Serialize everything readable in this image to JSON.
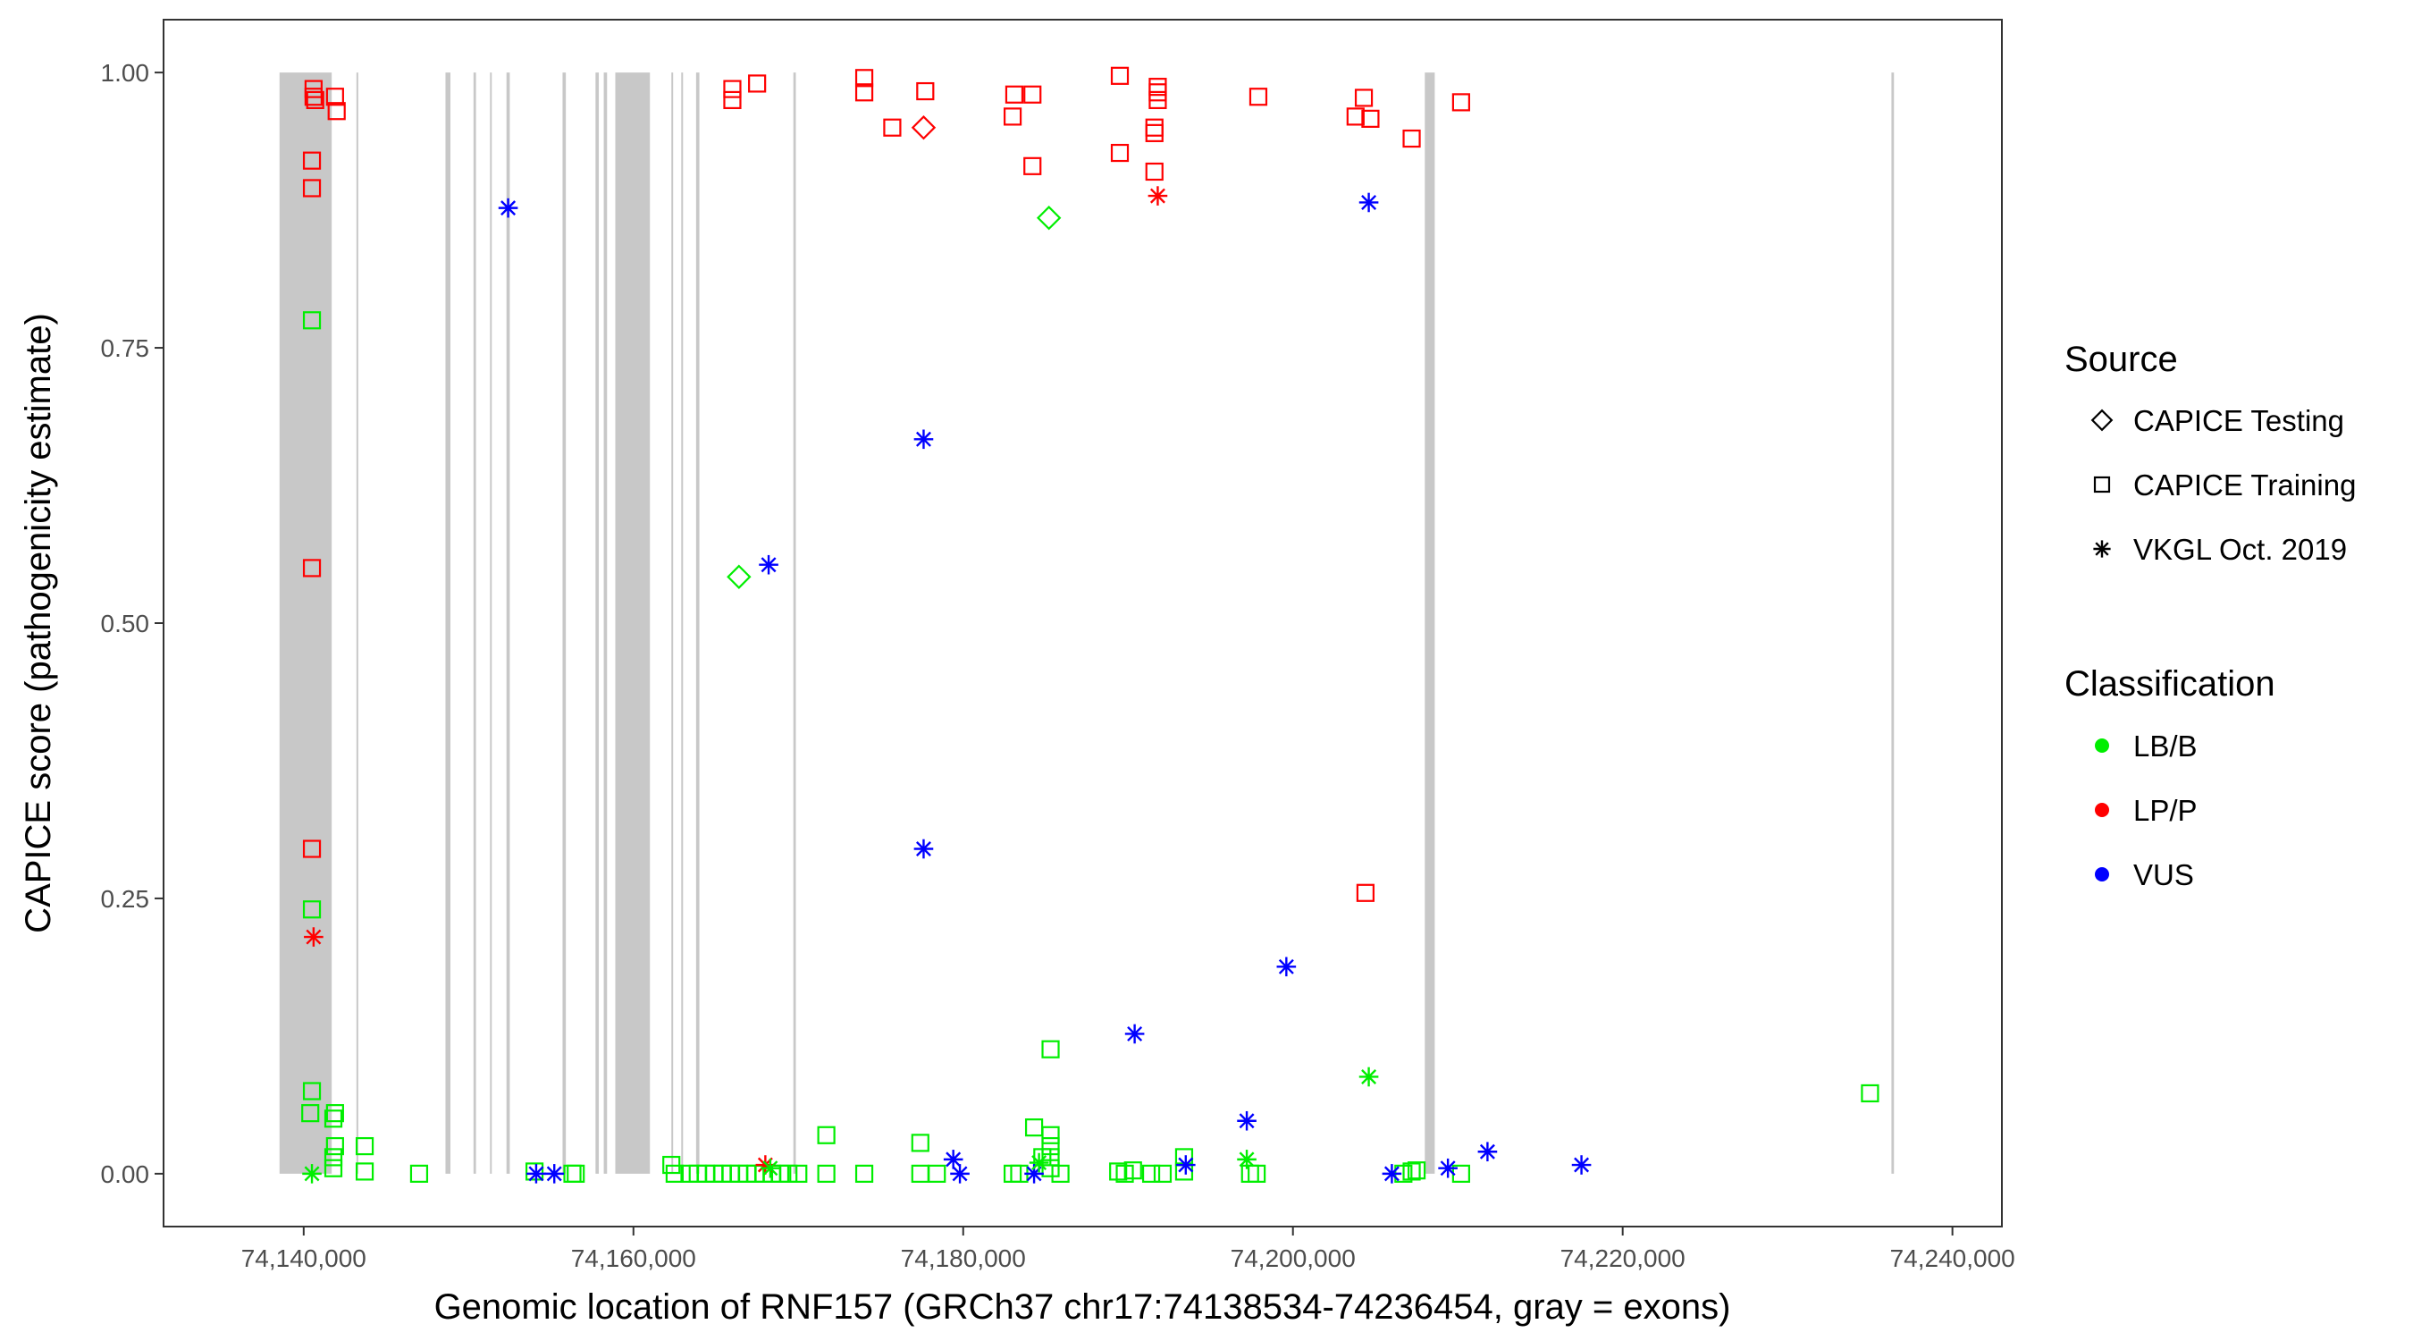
{
  "chart_data": {
    "type": "scatter",
    "xlabel": "Genomic location of RNF157 (GRCh37 chr17:74138534-74236454, gray = exons)",
    "ylabel": "CAPICE score (pathogenicity estimate)",
    "xlim": [
      74131500,
      74243000
    ],
    "ylim": [
      -0.048,
      1.048
    ],
    "xticks": [
      74140000,
      74160000,
      74180000,
      74200000,
      74220000,
      74240000
    ],
    "xtick_labels": [
      "74,140,000",
      "74,160,000",
      "74,180,000",
      "74,200,000",
      "74,220,000",
      "74,240,000"
    ],
    "yticks": [
      0,
      0.25,
      0.5,
      0.75,
      1
    ],
    "ytick_labels": [
      "0.00",
      "0.25",
      "0.50",
      "0.75",
      "1.00"
    ],
    "grid": false,
    "legend_position": "right",
    "exon_color": "#c8c8c8",
    "exons": [
      [
        74138534,
        74141700
      ],
      [
        74143200,
        74143300
      ],
      [
        74148600,
        74148900
      ],
      [
        74150300,
        74150450
      ],
      [
        74151300,
        74151400
      ],
      [
        74152300,
        74152500
      ],
      [
        74155700,
        74155900
      ],
      [
        74157700,
        74157900
      ],
      [
        74158200,
        74158400
      ],
      [
        74158900,
        74161000
      ],
      [
        74162300,
        74162400
      ],
      [
        74162900,
        74163000
      ],
      [
        74163800,
        74164000
      ],
      [
        74169700,
        74169850
      ],
      [
        74208000,
        74208600
      ],
      [
        74236300,
        74236454
      ]
    ],
    "legend_shape": {
      "title": "Source",
      "entries": [
        {
          "name": "CAPICE Testing",
          "shape": "diamond"
        },
        {
          "name": "CAPICE Training",
          "shape": "square"
        },
        {
          "name": "VKGL Oct. 2019",
          "shape": "asterisk"
        }
      ]
    },
    "legend_color": {
      "title": "Classification",
      "entries": [
        {
          "name": "LB/B",
          "color": "#00ee00"
        },
        {
          "name": "LP/P",
          "color": "#ff0000"
        },
        {
          "name": "VUS",
          "color": "#0000ff"
        }
      ]
    },
    "series": [
      {
        "source": "CAPICE Training",
        "classification": "LP/P",
        "points": [
          [
            74140600,
            0.985
          ],
          [
            74140600,
            0.978
          ],
          [
            74140700,
            0.975
          ],
          [
            74141900,
            0.978
          ],
          [
            74142000,
            0.965
          ],
          [
            74140500,
            0.92
          ],
          [
            74140500,
            0.895
          ],
          [
            74140500,
            0.55
          ],
          [
            74140500,
            0.295
          ],
          [
            74166000,
            0.985
          ],
          [
            74166000,
            0.975
          ],
          [
            74167500,
            0.99
          ],
          [
            74174000,
            0.995
          ],
          [
            74174000,
            0.982
          ],
          [
            74175700,
            0.95
          ],
          [
            74177700,
            0.983
          ],
          [
            74183000,
            0.96
          ],
          [
            74183100,
            0.98
          ],
          [
            74184200,
            0.98
          ],
          [
            74184200,
            0.915
          ],
          [
            74189500,
            0.997
          ],
          [
            74189500,
            0.927
          ],
          [
            74191800,
            0.987
          ],
          [
            74191800,
            0.982
          ],
          [
            74191800,
            0.975
          ],
          [
            74191600,
            0.95
          ],
          [
            74191600,
            0.945
          ],
          [
            74191600,
            0.91
          ],
          [
            74197900,
            0.978
          ],
          [
            74203800,
            0.96
          ],
          [
            74204300,
            0.977
          ],
          [
            74204700,
            0.958
          ],
          [
            74207200,
            0.94
          ],
          [
            74210200,
            0.973
          ],
          [
            74204400,
            0.255
          ]
        ]
      },
      {
        "source": "CAPICE Training",
        "classification": "LB/B",
        "points": [
          [
            74140500,
            0.775
          ],
          [
            74140500,
            0.24
          ],
          [
            74140500,
            0.075
          ],
          [
            74140400,
            0.055
          ],
          [
            74141900,
            0.055
          ],
          [
            74141800,
            0.05
          ],
          [
            74141900,
            0.025
          ],
          [
            74141800,
            0.015
          ],
          [
            74141800,
            0.005
          ],
          [
            74143700,
            0.025
          ],
          [
            74143700,
            0.002
          ],
          [
            74147000,
            0.0
          ],
          [
            74154000,
            0.002
          ],
          [
            74156300,
            0.0
          ],
          [
            74156500,
            0.0
          ],
          [
            74162300,
            0.008
          ],
          [
            74162500,
            0.0
          ],
          [
            74163400,
            0.0
          ],
          [
            74163900,
            0.0
          ],
          [
            74164400,
            0.0
          ],
          [
            74164900,
            0.0
          ],
          [
            74165400,
            0.0
          ],
          [
            74165900,
            0.0
          ],
          [
            74166400,
            0.0
          ],
          [
            74166900,
            0.0
          ],
          [
            74167400,
            0.0
          ],
          [
            74167900,
            0.0
          ],
          [
            74168400,
            0.0
          ],
          [
            74168900,
            0.0
          ],
          [
            74169400,
            0.0
          ],
          [
            74170000,
            0.0
          ],
          [
            74171700,
            0.035
          ],
          [
            74171700,
            0.0
          ],
          [
            74174000,
            0.0
          ],
          [
            74177400,
            0.028
          ],
          [
            74177400,
            0.0
          ],
          [
            74178400,
            0.0
          ],
          [
            74183000,
            0.0
          ],
          [
            74183400,
            0.0
          ],
          [
            74184300,
            0.042
          ],
          [
            74184800,
            0.015
          ],
          [
            74185300,
            0.035
          ],
          [
            74185300,
            0.025
          ],
          [
            74185300,
            0.015
          ],
          [
            74185300,
            0.005
          ],
          [
            74185300,
            0.113
          ],
          [
            74185900,
            0.0
          ],
          [
            74189400,
            0.002
          ],
          [
            74189800,
            0.0
          ],
          [
            74190300,
            0.003
          ],
          [
            74191400,
            0.0
          ],
          [
            74192100,
            0.0
          ],
          [
            74193400,
            0.015
          ],
          [
            74193400,
            0.002
          ],
          [
            74197400,
            0.0
          ],
          [
            74197800,
            0.0
          ],
          [
            74206700,
            0.0
          ],
          [
            74207200,
            0.002
          ],
          [
            74207500,
            0.003
          ],
          [
            74210200,
            0.0
          ],
          [
            74235000,
            0.073
          ]
        ]
      },
      {
        "source": "CAPICE Testing",
        "classification": "LP/P",
        "points": [
          [
            74177600,
            0.95
          ]
        ]
      },
      {
        "source": "CAPICE Testing",
        "classification": "LB/B",
        "points": [
          [
            74185200,
            0.868
          ],
          [
            74166400,
            0.542
          ]
        ]
      },
      {
        "source": "VKGL Oct. 2019",
        "classification": "VUS",
        "points": [
          [
            74152400,
            0.877
          ],
          [
            74168200,
            0.553
          ],
          [
            74177600,
            0.667
          ],
          [
            74177600,
            0.295
          ],
          [
            74190400,
            0.127
          ],
          [
            74199600,
            0.188
          ],
          [
            74204600,
            0.882
          ],
          [
            74197200,
            0.048
          ],
          [
            74179400,
            0.013
          ],
          [
            74179800,
            0.0
          ],
          [
            74193500,
            0.008
          ],
          [
            74184300,
            0.0
          ],
          [
            74154100,
            0.0
          ],
          [
            74155200,
            0.0
          ],
          [
            74206000,
            0.0
          ],
          [
            74209400,
            0.005
          ],
          [
            74211800,
            0.02
          ],
          [
            74217500,
            0.008
          ]
        ]
      },
      {
        "source": "VKGL Oct. 2019",
        "classification": "LP/P",
        "points": [
          [
            74191800,
            0.888
          ],
          [
            74140600,
            0.215
          ],
          [
            74168000,
            0.008
          ]
        ]
      },
      {
        "source": "VKGL Oct. 2019",
        "classification": "LB/B",
        "points": [
          [
            74204600,
            0.088
          ],
          [
            74197200,
            0.013
          ],
          [
            74140500,
            0.0
          ],
          [
            74168300,
            0.005
          ],
          [
            74184600,
            0.01
          ]
        ]
      }
    ]
  }
}
